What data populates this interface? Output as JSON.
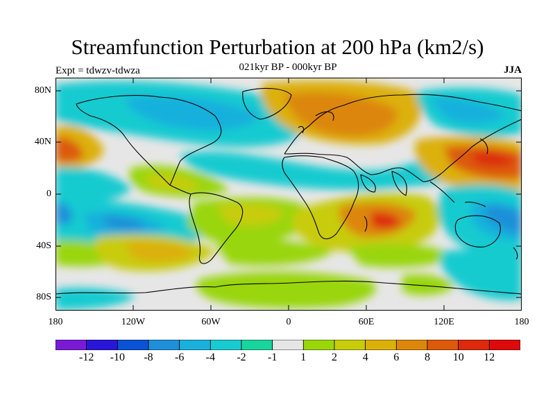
{
  "title": "Streamfunction Perturbation at 200 hPa (km2/s)",
  "subtitle": "021kyr BP - 000kyr BP",
  "experiment": "Expt = tdwzv-tdwza",
  "season": "JJA",
  "map": {
    "latitude_labels": [
      "80N",
      "40N",
      "0",
      "40S",
      "80S"
    ],
    "longitude_labels": [
      "180",
      "120W",
      "60W",
      "0",
      "60E",
      "120E",
      "180"
    ]
  },
  "colorbar": {
    "colors": [
      "#7a1ad6",
      "#2a16d8",
      "#0a52d6",
      "#1e8fd8",
      "#19b0dc",
      "#19cbd0",
      "#19d49c",
      "#e6e6e6",
      "#9ad60a",
      "#c8cc0a",
      "#dcb00a",
      "#dc860a",
      "#dc5a0a",
      "#dc2a0a",
      "#dc0a0a"
    ],
    "labels": [
      "-12",
      "-10",
      "-8",
      "-6",
      "-4",
      "-2",
      "-1",
      "1",
      "2",
      "4",
      "6",
      "8",
      "10",
      "12"
    ]
  }
}
